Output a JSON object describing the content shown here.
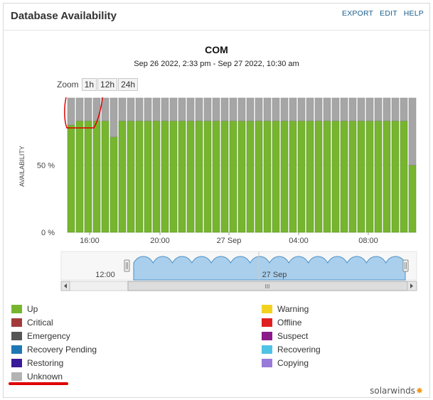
{
  "widget": {
    "title": "Database Availability",
    "links": {
      "export": "EXPORT",
      "edit": "EDIT",
      "help": "HELP"
    }
  },
  "chart_data": {
    "type": "bar",
    "title": "COM",
    "subtitle": "Sep 26 2022, 2:33 pm - Sep 27 2022, 10:30 am",
    "ylabel": "AVAILABILITY",
    "ylim": [
      0,
      100
    ],
    "y_ticks": [
      "0 %",
      "50 %"
    ],
    "x_ticks": [
      "16:00",
      "20:00",
      "27 Sep",
      "04:00",
      "08:00"
    ],
    "series": [
      {
        "name": "Up",
        "color": "#77b52f",
        "values": [
          80,
          83,
          83,
          83,
          83,
          71,
          83,
          83,
          83,
          83,
          83,
          83,
          83,
          83,
          83,
          83,
          83,
          83,
          83,
          83,
          83,
          83,
          83,
          83,
          83,
          83,
          83,
          83,
          83,
          83,
          83,
          83,
          83,
          83,
          83,
          83,
          83,
          83,
          83,
          83,
          50
        ]
      },
      {
        "name": "Unknown",
        "color": "#a6a6a6",
        "values": [
          20,
          17,
          17,
          17,
          17,
          29,
          17,
          17,
          17,
          17,
          17,
          17,
          17,
          17,
          17,
          17,
          17,
          17,
          17,
          17,
          17,
          17,
          17,
          17,
          17,
          17,
          17,
          17,
          17,
          17,
          17,
          17,
          17,
          17,
          17,
          17,
          17,
          17,
          17,
          17,
          50
        ]
      }
    ],
    "grid": true,
    "legend_position": "bottom"
  },
  "zoom": {
    "label": "Zoom",
    "buttons": [
      "1h",
      "12h",
      "24h"
    ]
  },
  "navigator": {
    "labels": [
      "12:00",
      "27 Sep"
    ],
    "scroll_grip": "III"
  },
  "legend": {
    "left": [
      {
        "label": "Up",
        "color": "#77b52f"
      },
      {
        "label": "Critical",
        "color": "#a33a3a"
      },
      {
        "label": "Emergency",
        "color": "#555555"
      },
      {
        "label": "Recovery Pending",
        "color": "#1f78b4"
      },
      {
        "label": "Restoring",
        "color": "#3a1a9a"
      },
      {
        "label": "Unknown",
        "color": "#b3b3b3"
      }
    ],
    "right": [
      {
        "label": "Warning",
        "color": "#f3d21f"
      },
      {
        "label": "Offline",
        "color": "#e02020"
      },
      {
        "label": "Suspect",
        "color": "#8a1a8a"
      },
      {
        "label": "Recovering",
        "color": "#4fc3e6"
      },
      {
        "label": "Copying",
        "color": "#9a7ad9"
      }
    ]
  },
  "brand": {
    "name": "solarwinds",
    "flare_icon": "solarwinds-flare-icon"
  }
}
